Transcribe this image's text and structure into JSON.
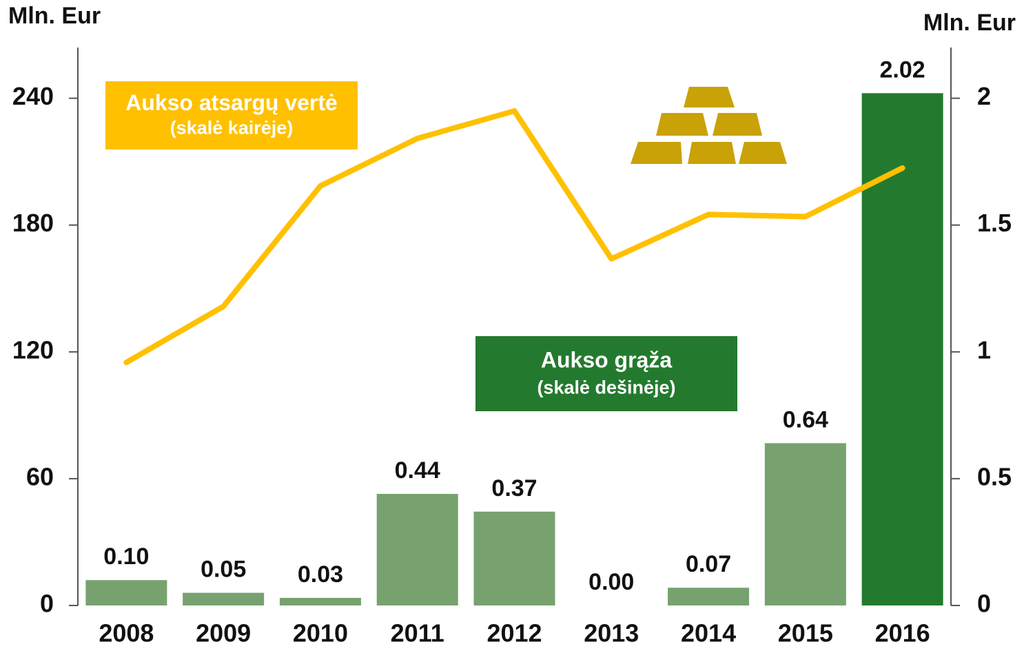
{
  "chart_data": {
    "type": "bar",
    "categories": [
      "2008",
      "2009",
      "2010",
      "2011",
      "2012",
      "2013",
      "2014",
      "2015",
      "2016"
    ],
    "ylabel": "Mln. Eur",
    "y2label": "Mln. Eur",
    "ylim": [
      0,
      264
    ],
    "yticks": [
      0,
      60,
      120,
      180,
      240
    ],
    "y2lim": [
      0,
      2.2
    ],
    "y2ticks": [
      0,
      0.5,
      1,
      1.5,
      2
    ],
    "series": [
      {
        "name": "Aukso grąža",
        "scale_label": "(skalė dešinėje)",
        "type": "bar",
        "axis": "y2",
        "color": "#237a2e",
        "colors": [
          "#77a26f",
          "#77a26f",
          "#77a26f",
          "#77a26f",
          "#77a26f",
          "#77a26f",
          "#77a26f",
          "#77a26f",
          "#237a2e"
        ],
        "values": [
          0.1,
          0.05,
          0.03,
          0.44,
          0.37,
          0,
          0.07,
          0.64,
          2.02
        ],
        "value_labels": [
          "0.10",
          "0.05",
          "0.03",
          "0.44",
          "0.37",
          "0.00",
          "0.07",
          "0.64",
          "2.02"
        ]
      },
      {
        "name": "Aukso atsargų vertė",
        "scale_label": "(skalė kairėje)",
        "type": "line",
        "color": "#ffc000",
        "values": [
          115,
          141.5,
          198.5,
          221,
          234,
          164,
          185,
          184,
          207
        ]
      }
    ]
  }
}
